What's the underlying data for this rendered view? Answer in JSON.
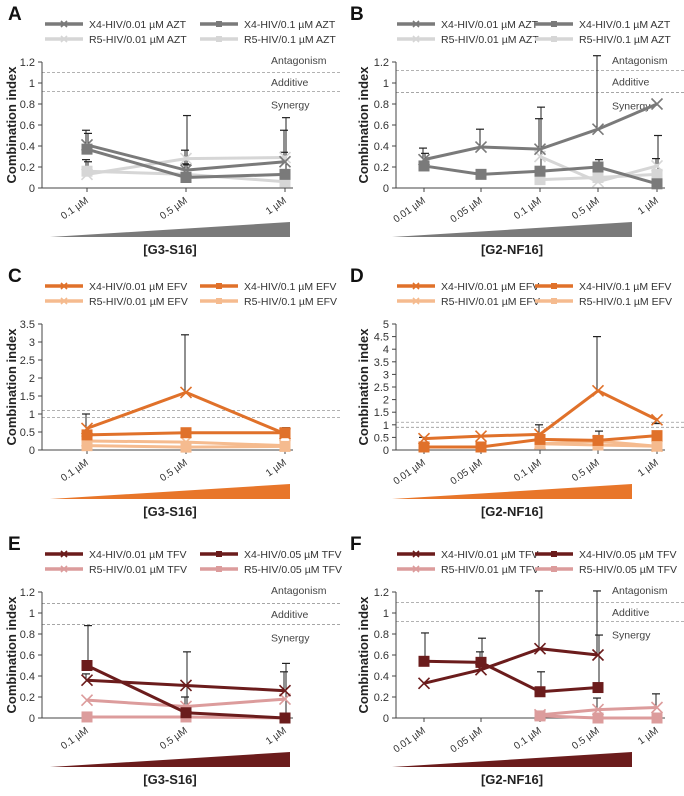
{
  "chart_data": [
    {
      "panel": "A",
      "type": "line",
      "categories": [
        "0.1 µM",
        "0.5 µM",
        "1 µM"
      ],
      "xlabel": "[G3-S16]",
      "ylabel": "Combination index",
      "ylim": [
        0,
        1.2
      ],
      "yticks": [
        "0",
        "0.2",
        "0.4",
        "0.6",
        "0.8",
        "1",
        "1.2"
      ],
      "ytick_values": [
        0,
        0.2,
        0.4,
        0.6,
        0.8,
        1,
        1.2
      ],
      "reference_lines": [
        0.92,
        1.1
      ],
      "region_labels": [
        "Antagonism",
        "Additive",
        "Synergy"
      ],
      "wedge_color": "#7a7a7a",
      "series": [
        {
          "name": "X4-HIV/0.01 µM AZT",
          "marker": "x",
          "color": "#7a7a7a",
          "values": [
            0.41,
            0.17,
            0.25
          ],
          "error_upper": [
            0.55,
            0.36,
            0.55
          ]
        },
        {
          "name": "X4-HIV/0.1 µM AZT",
          "marker": "square",
          "color": "#7a7a7a",
          "values": [
            0.37,
            0.1,
            0.13
          ],
          "error_upper": [
            0.52,
            0.69,
            0.67
          ]
        },
        {
          "name": "R5-HIV/0.01 µM AZT",
          "marker": "x",
          "color": "#d6d6d6",
          "values": [
            0.13,
            0.28,
            0.29
          ],
          "error_upper": [
            0.27,
            0.23,
            0.34
          ]
        },
        {
          "name": "R5-HIV/0.1 µM AZT",
          "marker": "square",
          "color": "#d6d6d6",
          "values": [
            0.16,
            0.13,
            0.06
          ],
          "error_upper": [
            0.25,
            0.22,
            null
          ]
        }
      ]
    },
    {
      "panel": "B",
      "type": "line",
      "categories": [
        "0.01 µM",
        "0.05 µM",
        "0.1 µM",
        "0.5 µM",
        "1 µM"
      ],
      "xlabel": "[G2-NF16]",
      "ylabel": "Combination index",
      "ylim": [
        0,
        1.2
      ],
      "yticks": [
        "0",
        "0.2",
        "0.4",
        "0.6",
        "0.8",
        "1",
        "1.2"
      ],
      "ytick_values": [
        0,
        0.2,
        0.4,
        0.6,
        0.8,
        1,
        1.2
      ],
      "reference_lines": [
        0.91,
        1.12
      ],
      "region_labels": [
        "Antagonism",
        "Additive",
        "Synergy"
      ],
      "wedge_color": "#7a7a7a",
      "series": [
        {
          "name": "X4-HIV/0.01 µM AZT",
          "marker": "x",
          "color": "#7a7a7a",
          "values": [
            0.27,
            0.39,
            0.37,
            0.56,
            0.8
          ],
          "error_upper": [
            0.38,
            0.56,
            0.66,
            1.26,
            null
          ]
        },
        {
          "name": "X4-HIV/0.1 µM AZT",
          "marker": "square",
          "color": "#7a7a7a",
          "values": [
            0.21,
            0.13,
            0.16,
            0.2,
            0.04
          ],
          "error_upper": [
            0.33,
            null,
            0.77,
            0.27,
            0.5
          ]
        },
        {
          "name": "R5-HIV/0.01 µM AZT",
          "marker": "x",
          "color": "#d6d6d6",
          "values": [
            null,
            null,
            0.3,
            0.06,
            0.21
          ],
          "error_upper": [
            null,
            null,
            null,
            null,
            0.28
          ]
        },
        {
          "name": "R5-HIV/0.1 µM AZT",
          "marker": "square",
          "color": "#d6d6d6",
          "values": [
            null,
            null,
            0.08,
            0.1,
            0.13
          ],
          "error_upper": [
            null,
            null,
            null,
            null,
            null
          ]
        }
      ]
    },
    {
      "panel": "C",
      "type": "line",
      "categories": [
        "0.1 µM",
        "0.5 µM",
        "1 µM"
      ],
      "xlabel": "[G3-S16]",
      "ylabel": "Combination index",
      "ylim": [
        0,
        3.5
      ],
      "yticks": [
        "0",
        "0.5",
        "1",
        "1.5",
        "2",
        "2.5",
        "3",
        "3.5"
      ],
      "ytick_values": [
        0,
        0.5,
        1,
        1.5,
        2,
        2.5,
        3,
        3.5
      ],
      "reference_lines": [
        0.9,
        1.1
      ],
      "region_labels": [],
      "wedge_color": "#e8762a",
      "series": [
        {
          "name": "X4-HIV/0.01 µM EFV",
          "marker": "x",
          "color": "#e0712a",
          "values": [
            0.6,
            1.6,
            0.45
          ],
          "error_upper": [
            1.0,
            3.2,
            0.6
          ]
        },
        {
          "name": "X4-HIV/0.1 µM EFV",
          "marker": "square",
          "color": "#e0712a",
          "values": [
            0.42,
            0.48,
            0.48
          ],
          "error_upper": [
            null,
            null,
            0.62
          ]
        },
        {
          "name": "R5-HIV/0.01 µM EFV",
          "marker": "x",
          "color": "#f5bb8f",
          "values": [
            0.25,
            0.22,
            0.12
          ],
          "error_upper": [
            null,
            null,
            null
          ]
        },
        {
          "name": "R5-HIV/0.1 µM EFV",
          "marker": "square",
          "color": "#f5bb8f",
          "values": [
            0.12,
            0.08,
            0.1
          ],
          "error_upper": [
            null,
            null,
            null
          ]
        }
      ]
    },
    {
      "panel": "D",
      "type": "line",
      "categories": [
        "0.01 µM",
        "0.05 µM",
        "0.1 µM",
        "0.5 µM",
        "1 µM"
      ],
      "xlabel": "[G2-NF16]",
      "ylabel": "Combination index",
      "ylim": [
        0,
        5
      ],
      "yticks": [
        "0",
        "0.5",
        "1",
        "1.5",
        "2",
        "2.5",
        "3",
        "3.5",
        "4",
        "4.5",
        "5"
      ],
      "ytick_values": [
        0,
        0.5,
        1,
        1.5,
        2,
        2.5,
        3,
        3.5,
        4,
        4.5,
        5
      ],
      "reference_lines": [
        0.9,
        1.1
      ],
      "region_labels": [],
      "wedge_color": "#e8762a",
      "series": [
        {
          "name": "X4-HIV/0.01 µM EFV",
          "marker": "x",
          "color": "#e0712a",
          "values": [
            0.45,
            0.55,
            0.62,
            2.35,
            1.2
          ],
          "error_upper": [
            0.5,
            null,
            1.0,
            4.5,
            1.05
          ]
        },
        {
          "name": "X4-HIV/0.1 µM EFV",
          "marker": "square",
          "color": "#e0712a",
          "values": [
            0.12,
            0.12,
            0.42,
            0.38,
            0.57
          ],
          "error_upper": [
            null,
            null,
            null,
            0.75,
            null
          ]
        },
        {
          "name": "R5-HIV/0.01 µM EFV",
          "marker": "x",
          "color": "#f5bb8f",
          "values": [
            null,
            null,
            0.25,
            0.35,
            0.15
          ],
          "error_upper": [
            null,
            null,
            null,
            null,
            null
          ]
        },
        {
          "name": "R5-HIV/0.1 µM EFV",
          "marker": "square",
          "color": "#f5bb8f",
          "values": [
            null,
            null,
            0.25,
            0.2,
            0.15
          ],
          "error_upper": [
            null,
            null,
            null,
            null,
            null
          ]
        }
      ]
    },
    {
      "panel": "E",
      "type": "line",
      "categories": [
        "0.1 µM",
        "0.5 µM",
        "1 µM"
      ],
      "xlabel": "[G3-S16]",
      "ylabel": "Combination index",
      "ylim": [
        0,
        1.2
      ],
      "yticks": [
        "0",
        "0.2",
        "0.4",
        "0.6",
        "0.8",
        "1",
        "1.2"
      ],
      "ytick_values": [
        0,
        0.2,
        0.4,
        0.6,
        0.8,
        1,
        1.2
      ],
      "reference_lines": [
        0.89,
        1.09
      ],
      "region_labels": [
        "Antagonism",
        "Additive",
        "Synergy"
      ],
      "wedge_color": "#6b1c1c",
      "series": [
        {
          "name": "X4-HIV/0.01 µM TFV",
          "marker": "x",
          "color": "#6b1c1c",
          "values": [
            0.36,
            0.31,
            0.26
          ],
          "error_upper": [
            0.42,
            null,
            0.44
          ]
        },
        {
          "name": "X4-HIV/0.05 µM TFV",
          "marker": "square",
          "color": "#6b1c1c",
          "values": [
            0.5,
            0.05,
            0.0
          ],
          "error_upper": [
            0.88,
            0.63,
            0.52
          ]
        },
        {
          "name": "R5-HIV/0.01 µM TFV",
          "marker": "x",
          "color": "#dc9c9c",
          "values": [
            0.17,
            0.11,
            0.18
          ],
          "error_upper": [
            null,
            0.2,
            null
          ]
        },
        {
          "name": "R5-HIV/0.05 µM TFV",
          "marker": "square",
          "color": "#dc9c9c",
          "values": [
            0.01,
            0.01,
            0.0
          ],
          "error_upper": [
            null,
            null,
            null
          ]
        }
      ]
    },
    {
      "panel": "F",
      "type": "line",
      "categories": [
        "0.01 µM",
        "0.05 µM",
        "0.1 µM",
        "0.5 µM",
        "1 µM"
      ],
      "xlabel": "[G2-NF16]",
      "ylabel": "Combination index",
      "ylim": [
        0,
        1.2
      ],
      "yticks": [
        "0",
        "0.2",
        "0.4",
        "0.6",
        "0.8",
        "1",
        "1.2"
      ],
      "ytick_values": [
        0,
        0.2,
        0.4,
        0.6,
        0.8,
        1,
        1.2
      ],
      "reference_lines": [
        0.92,
        1.1
      ],
      "region_labels": [
        "Antagonism",
        "Additive",
        "Synergy"
      ],
      "wedge_color": "#6b1c1c",
      "series": [
        {
          "name": "X4-HIV/0.01 µM TFV",
          "marker": "x",
          "color": "#6b1c1c",
          "values": [
            0.33,
            0.46,
            0.66,
            0.6,
            null
          ],
          "error_upper": [
            null,
            0.63,
            1.21,
            1.21,
            null
          ]
        },
        {
          "name": "X4-HIV/0.05 µM TFV",
          "marker": "square",
          "color": "#6b1c1c",
          "values": [
            0.54,
            0.53,
            0.25,
            0.29,
            null
          ],
          "error_upper": [
            0.81,
            0.76,
            0.44,
            0.79,
            null
          ]
        },
        {
          "name": "R5-HIV/0.01 µM TFV",
          "marker": "x",
          "color": "#dc9c9c",
          "values": [
            null,
            null,
            0.03,
            0.08,
            0.1
          ],
          "error_upper": [
            null,
            null,
            0.06,
            0.19,
            0.23
          ]
        },
        {
          "name": "R5-HIV/0.05 µM TFV",
          "marker": "square",
          "color": "#dc9c9c",
          "values": [
            null,
            null,
            0.02,
            0.0,
            0.0
          ],
          "error_upper": [
            null,
            null,
            null,
            null,
            null
          ]
        }
      ]
    }
  ]
}
